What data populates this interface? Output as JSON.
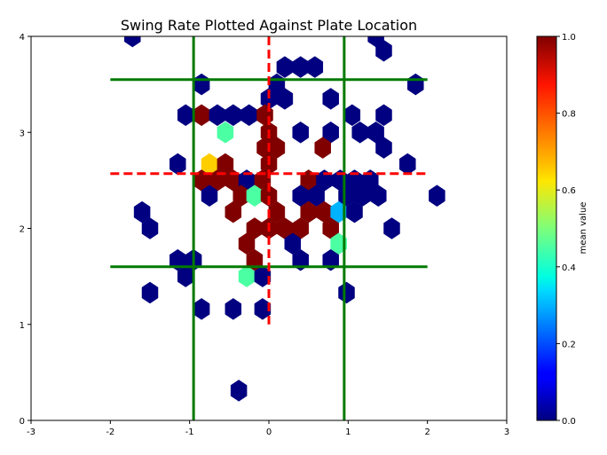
{
  "chart_data": {
    "type": "hexbin",
    "title": "Swing Rate Plotted Against Plate Location",
    "xlabel": "",
    "ylabel": "",
    "xlim": [
      -3,
      3
    ],
    "ylim": [
      0,
      4
    ],
    "x_ticks": [
      "-3",
      "-2",
      "-1",
      "0",
      "1",
      "2",
      "3"
    ],
    "y_ticks": [
      "0",
      "1",
      "2",
      "3",
      "4"
    ],
    "colorbar": {
      "label": "mean value",
      "colormap": "jet",
      "range": [
        0,
        1
      ],
      "ticks": [
        "0.0",
        "0.2",
        "0.4",
        "0.6",
        "0.8",
        "1.0"
      ]
    },
    "strike_zone": {
      "color": "#007a00",
      "vertical_x": [
        -0.95,
        0.95
      ],
      "horizontal_y": [
        1.6,
        3.55
      ],
      "x_span": [
        -2,
        2
      ]
    },
    "center_lines": {
      "color": "#ff0000",
      "vertical_x": 0,
      "vertical_y_span": [
        1.0,
        4.0
      ],
      "horizontal_y": 2.57,
      "horizontal_x_span": [
        -2,
        2
      ]
    },
    "cells": [
      {
        "x": -1.72,
        "y": 4.0,
        "v": 0
      },
      {
        "x": 1.35,
        "y": 4.0,
        "v": 0
      },
      {
        "x": 1.45,
        "y": 3.85,
        "v": 0
      },
      {
        "x": 0.2,
        "y": 3.68,
        "v": 0
      },
      {
        "x": 0.4,
        "y": 3.68,
        "v": 0
      },
      {
        "x": 0.58,
        "y": 3.68,
        "v": 0
      },
      {
        "x": -0.85,
        "y": 3.5,
        "v": 0
      },
      {
        "x": 1.85,
        "y": 3.5,
        "v": 0
      },
      {
        "x": 0.1,
        "y": 3.5,
        "v": 0
      },
      {
        "x": 0.0,
        "y": 3.35,
        "v": 0
      },
      {
        "x": 0.2,
        "y": 3.35,
        "v": 0
      },
      {
        "x": 0.78,
        "y": 3.35,
        "v": 0
      },
      {
        "x": -1.05,
        "y": 3.18,
        "v": 0
      },
      {
        "x": -0.85,
        "y": 3.18,
        "v": 1
      },
      {
        "x": -0.65,
        "y": 3.18,
        "v": 0
      },
      {
        "x": -0.45,
        "y": 3.18,
        "v": 0
      },
      {
        "x": -0.25,
        "y": 3.18,
        "v": 0
      },
      {
        "x": -0.05,
        "y": 3.18,
        "v": 1
      },
      {
        "x": 1.05,
        "y": 3.18,
        "v": 0
      },
      {
        "x": 1.45,
        "y": 3.18,
        "v": 0
      },
      {
        "x": -0.55,
        "y": 3.0,
        "v": 0.45
      },
      {
        "x": 0.0,
        "y": 3.0,
        "v": 1
      },
      {
        "x": 0.4,
        "y": 3.0,
        "v": 0
      },
      {
        "x": 0.78,
        "y": 3.0,
        "v": 0
      },
      {
        "x": 1.15,
        "y": 3.0,
        "v": 0
      },
      {
        "x": 1.35,
        "y": 3.0,
        "v": 0
      },
      {
        "x": -0.05,
        "y": 2.84,
        "v": 1
      },
      {
        "x": 0.1,
        "y": 2.84,
        "v": 1
      },
      {
        "x": 0.68,
        "y": 2.84,
        "v": 1
      },
      {
        "x": 1.45,
        "y": 2.84,
        "v": 0
      },
      {
        "x": -1.15,
        "y": 2.67,
        "v": 0
      },
      {
        "x": -0.75,
        "y": 2.67,
        "v": 0.65
      },
      {
        "x": -0.55,
        "y": 2.67,
        "v": 1
      },
      {
        "x": 0.0,
        "y": 2.67,
        "v": 1
      },
      {
        "x": 1.75,
        "y": 2.67,
        "v": 0
      },
      {
        "x": -0.85,
        "y": 2.5,
        "v": 1
      },
      {
        "x": -0.65,
        "y": 2.5,
        "v": 1
      },
      {
        "x": -0.45,
        "y": 2.5,
        "v": 1
      },
      {
        "x": -0.28,
        "y": 2.5,
        "v": 0
      },
      {
        "x": -0.08,
        "y": 2.5,
        "v": 1
      },
      {
        "x": 0.5,
        "y": 2.5,
        "v": 1
      },
      {
        "x": 0.7,
        "y": 2.5,
        "v": 0
      },
      {
        "x": 0.9,
        "y": 2.5,
        "v": 0
      },
      {
        "x": 1.08,
        "y": 2.5,
        "v": 0
      },
      {
        "x": 1.28,
        "y": 2.5,
        "v": 0
      },
      {
        "x": -0.75,
        "y": 2.34,
        "v": 0
      },
      {
        "x": -0.35,
        "y": 2.34,
        "v": 1
      },
      {
        "x": -0.18,
        "y": 2.34,
        "v": 0.45
      },
      {
        "x": 0.0,
        "y": 2.34,
        "v": 1
      },
      {
        "x": 0.4,
        "y": 2.34,
        "v": 0
      },
      {
        "x": 0.6,
        "y": 2.34,
        "v": 0
      },
      {
        "x": 0.98,
        "y": 2.34,
        "v": 0
      },
      {
        "x": 1.18,
        "y": 2.34,
        "v": 0
      },
      {
        "x": 1.38,
        "y": 2.34,
        "v": 0
      },
      {
        "x": 2.12,
        "y": 2.34,
        "v": 0
      },
      {
        "x": -1.6,
        "y": 2.17,
        "v": 0
      },
      {
        "x": -0.45,
        "y": 2.17,
        "v": 1
      },
      {
        "x": 0.1,
        "y": 2.17,
        "v": 1
      },
      {
        "x": 0.5,
        "y": 2.17,
        "v": 1
      },
      {
        "x": 0.7,
        "y": 2.17,
        "v": 1
      },
      {
        "x": 0.88,
        "y": 2.17,
        "v": 0.3
      },
      {
        "x": 1.08,
        "y": 2.17,
        "v": 0
      },
      {
        "x": -1.5,
        "y": 2.0,
        "v": 0
      },
      {
        "x": -0.18,
        "y": 2.0,
        "v": 1
      },
      {
        "x": 0.0,
        "y": 2.0,
        "v": 1
      },
      {
        "x": 0.2,
        "y": 2.0,
        "v": 1
      },
      {
        "x": 0.4,
        "y": 2.0,
        "v": 1
      },
      {
        "x": 0.78,
        "y": 2.0,
        "v": 1
      },
      {
        "x": 1.55,
        "y": 2.0,
        "v": 0
      },
      {
        "x": -0.28,
        "y": 1.84,
        "v": 1
      },
      {
        "x": 0.3,
        "y": 1.84,
        "v": 0
      },
      {
        "x": 0.88,
        "y": 1.84,
        "v": 0.45
      },
      {
        "x": -1.15,
        "y": 1.67,
        "v": 0
      },
      {
        "x": -0.95,
        "y": 1.67,
        "v": 0
      },
      {
        "x": -0.18,
        "y": 1.67,
        "v": 1
      },
      {
        "x": 0.4,
        "y": 1.67,
        "v": 0
      },
      {
        "x": 0.78,
        "y": 1.67,
        "v": 0
      },
      {
        "x": -1.05,
        "y": 1.5,
        "v": 0
      },
      {
        "x": -0.28,
        "y": 1.5,
        "v": 0.45
      },
      {
        "x": -0.08,
        "y": 1.5,
        "v": 0
      },
      {
        "x": -1.5,
        "y": 1.33,
        "v": 0
      },
      {
        "x": 0.98,
        "y": 1.33,
        "v": 0
      },
      {
        "x": -0.85,
        "y": 1.16,
        "v": 0
      },
      {
        "x": -0.45,
        "y": 1.16,
        "v": 0
      },
      {
        "x": -0.08,
        "y": 1.16,
        "v": 0
      },
      {
        "x": -0.38,
        "y": 0.31,
        "v": 0
      }
    ]
  }
}
